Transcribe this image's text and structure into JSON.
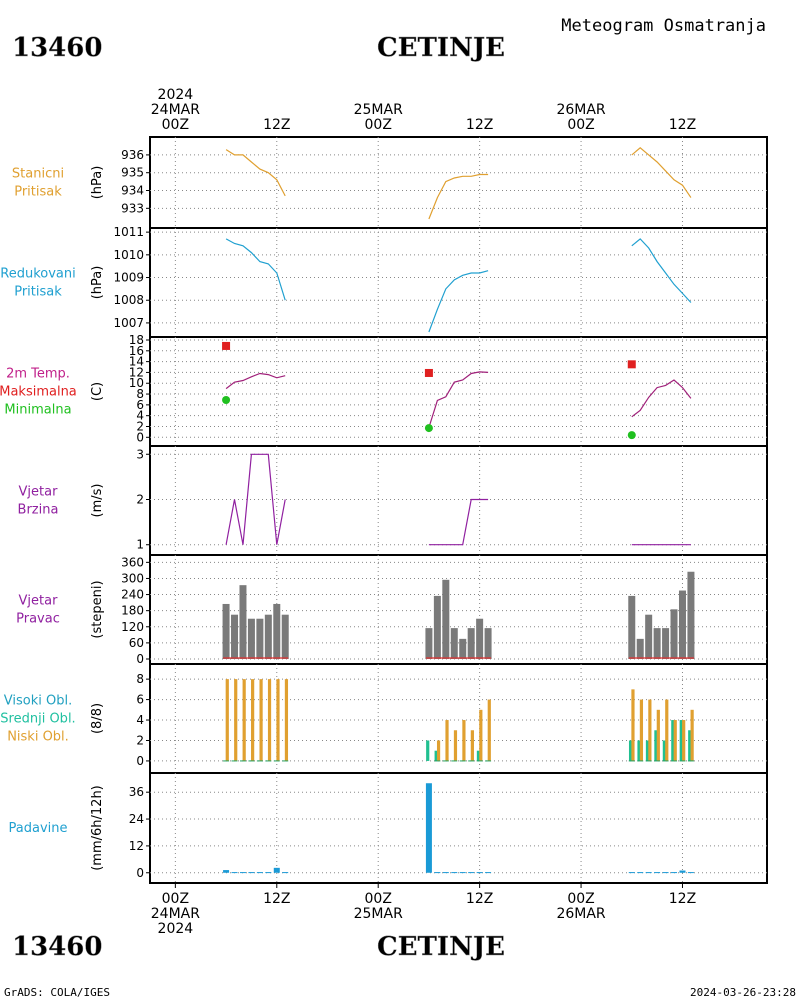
{
  "header": {
    "station_id": "13460",
    "station_name": "CETINJE",
    "subtitle": "Meteogram Osmatranja"
  },
  "footer": {
    "station_id": "13460",
    "station_name": "CETINJE",
    "credit": "GrADS: COLA/IGES",
    "timestamp": "2024-03-26-23:28"
  },
  "time_axis": {
    "top_labels": [
      {
        "hour": 0,
        "lines": [
          "2024",
          "24MAR",
          "00Z"
        ]
      },
      {
        "hour": 12,
        "lines": [
          "12Z"
        ]
      },
      {
        "hour": 24,
        "lines": [
          "25MAR",
          "00Z"
        ]
      },
      {
        "hour": 36,
        "lines": [
          "12Z"
        ]
      },
      {
        "hour": 48,
        "lines": [
          "26MAR",
          "00Z"
        ]
      },
      {
        "hour": 60,
        "lines": [
          "12Z"
        ]
      }
    ],
    "bottom_labels": [
      {
        "hour": 0,
        "lines": [
          "00Z",
          "24MAR",
          "2024"
        ]
      },
      {
        "hour": 12,
        "lines": [
          "12Z"
        ]
      },
      {
        "hour": 24,
        "lines": [
          "00Z",
          "25MAR"
        ]
      },
      {
        "hour": 36,
        "lines": [
          "12Z"
        ]
      },
      {
        "hour": 48,
        "lines": [
          "00Z",
          "26MAR"
        ]
      },
      {
        "hour": 60,
        "lines": [
          "12Z"
        ]
      }
    ],
    "range_hours": [
      -3,
      70
    ],
    "grid_hours": [
      0,
      12,
      24,
      36,
      48,
      60
    ]
  },
  "chart_data": [
    {
      "id": "station_pressure",
      "type": "line",
      "labels": [
        "Stanicni",
        "Pritisak"
      ],
      "label_color": "#e0a030",
      "ylabel": "(hPa)",
      "ylim": [
        932.4,
        936.5
      ],
      "yticks": [
        933,
        934,
        935,
        936
      ],
      "series": [
        {
          "color": "#e0a030",
          "segments": [
            {
              "x": [
                6,
                7,
                8,
                9,
                10,
                11,
                12,
                13
              ],
              "y": [
                936.3,
                936.0,
                936.0,
                935.6,
                935.2,
                935.0,
                934.6,
                933.7
              ]
            },
            {
              "x": [
                30,
                31,
                32,
                33,
                34,
                35,
                36,
                37
              ],
              "y": [
                932.4,
                933.6,
                934.5,
                934.7,
                934.8,
                934.8,
                934.9,
                934.9
              ]
            },
            {
              "x": [
                54,
                55,
                56,
                57,
                58,
                59,
                60,
                61
              ],
              "y": [
                936.0,
                936.4,
                936.0,
                935.6,
                935.1,
                934.6,
                934.3,
                933.6
              ]
            }
          ]
        }
      ]
    },
    {
      "id": "reduced_pressure",
      "type": "line",
      "labels": [
        "Redukovani",
        "Pritisak"
      ],
      "label_color": "#20a0d0",
      "ylabel": "(hPa)",
      "ylim": [
        1006.6,
        1011.05
      ],
      "yticks": [
        1007,
        1008,
        1009,
        1010,
        1011
      ],
      "series": [
        {
          "color": "#20a0d0",
          "segments": [
            {
              "x": [
                6,
                7,
                8,
                9,
                10,
                11,
                12,
                13
              ],
              "y": [
                1010.7,
                1010.5,
                1010.4,
                1010.1,
                1009.7,
                1009.6,
                1009.2,
                1008.0
              ]
            },
            {
              "x": [
                30,
                31,
                32,
                33,
                34,
                35,
                36,
                37
              ],
              "y": [
                1006.6,
                1007.6,
                1008.5,
                1008.9,
                1009.1,
                1009.2,
                1009.2,
                1009.3
              ]
            },
            {
              "x": [
                54,
                55,
                56,
                57,
                58,
                59,
                60,
                61
              ],
              "y": [
                1010.4,
                1010.7,
                1010.3,
                1009.7,
                1009.2,
                1008.7,
                1008.3,
                1007.9
              ]
            }
          ]
        }
      ]
    },
    {
      "id": "temperature",
      "type": "line",
      "labels": [
        "2m Temp.",
        "Maksimalna",
        "Minimalna"
      ],
      "label_colors": [
        "#c0208a",
        "#e02020",
        "#20c020"
      ],
      "ylabel": "(C)",
      "ylim": [
        -0.5,
        18
      ],
      "yticks": [
        0,
        2,
        4,
        6,
        8,
        10,
        12,
        14,
        16,
        18
      ],
      "series": [
        {
          "color": "#a0207a",
          "segments": [
            {
              "x": [
                6,
                7,
                8,
                9,
                10,
                11,
                12,
                13
              ],
              "y": [
                9.0,
                10.2,
                10.5,
                11.2,
                11.8,
                11.6,
                11.0,
                11.4
              ]
            },
            {
              "x": [
                30,
                31,
                32,
                33,
                34,
                35,
                36,
                37
              ],
              "y": [
                1.8,
                6.8,
                7.5,
                10.2,
                10.6,
                11.8,
                12.1,
                12.0
              ]
            },
            {
              "x": [
                54,
                55,
                56,
                57,
                58,
                59,
                60,
                61
              ],
              "y": [
                3.8,
                5.0,
                7.4,
                9.2,
                9.6,
                10.6,
                9.2,
                7.2
              ]
            }
          ]
        }
      ],
      "max_markers": {
        "color": "#e02020",
        "x": [
          6,
          30,
          54
        ],
        "y": [
          16.9,
          11.9,
          13.5
        ]
      },
      "min_markers": {
        "color": "#20c020",
        "x": [
          6,
          30,
          54
        ],
        "y": [
          6.9,
          1.7,
          0.4
        ]
      }
    },
    {
      "id": "wind_speed",
      "type": "line",
      "labels": [
        "Vjetar",
        "Brzina"
      ],
      "label_color": "#9020a0",
      "ylabel": "(m/s)",
      "ylim": [
        0.95,
        3.05
      ],
      "yticks": [
        1,
        2,
        3
      ],
      "series": [
        {
          "color": "#9020a0",
          "segments": [
            {
              "x": [
                6,
                7,
                8,
                9,
                10,
                11,
                12,
                13
              ],
              "y": [
                1,
                2,
                1,
                3,
                3,
                3,
                1,
                2
              ]
            },
            {
              "x": [
                30,
                31,
                32,
                33,
                34,
                35,
                36,
                37
              ],
              "y": [
                1,
                1,
                1,
                1,
                1,
                2,
                2,
                2
              ]
            },
            {
              "x": [
                54,
                55,
                56,
                57,
                58,
                59,
                60,
                61
              ],
              "y": [
                1,
                1,
                1,
                1,
                1,
                1,
                1,
                1
              ]
            }
          ]
        }
      ]
    },
    {
      "id": "wind_direction",
      "type": "bar",
      "labels": [
        "Vjetar",
        "Pravac"
      ],
      "label_color": "#9020a0",
      "ylabel": "(stepeni)",
      "ylim": [
        0,
        365
      ],
      "yticks": [
        0,
        60,
        120,
        180,
        240,
        300,
        360
      ],
      "bar_color": "#7a7a7a",
      "x": [
        6,
        7,
        8,
        9,
        10,
        11,
        12,
        13,
        30,
        31,
        32,
        33,
        34,
        35,
        36,
        37,
        54,
        55,
        56,
        57,
        58,
        59,
        60,
        61
      ],
      "values": [
        205,
        165,
        275,
        150,
        150,
        165,
        205,
        165,
        115,
        235,
        295,
        115,
        75,
        115,
        150,
        115,
        235,
        75,
        165,
        115,
        115,
        185,
        255,
        325
      ],
      "baseline_color": "#e03030"
    },
    {
      "id": "clouds",
      "type": "bar",
      "labels": [
        "Visoki Obl.",
        "Srednji Obl.",
        "Niski Obl."
      ],
      "label_colors": [
        "#20a0c0",
        "#20c0a0",
        "#e0a030"
      ],
      "ylabel": "(8/8)",
      "ylim": [
        -0.3,
        8.6
      ],
      "yticks": [
        0,
        2,
        4,
        6,
        8
      ],
      "series": [
        {
          "name": "Visoki Obl.",
          "color": "#20a0c0",
          "x": [],
          "values": []
        },
        {
          "name": "Srednji Obl.",
          "color": "#20c090",
          "x": [
            30,
            31,
            36,
            54,
            55,
            56,
            57,
            58,
            59,
            60,
            61
          ],
          "values": [
            2,
            1,
            1,
            2,
            2,
            2,
            3,
            2,
            4,
            4,
            3
          ]
        },
        {
          "name": "Niski Obl.",
          "color": "#e0a030",
          "x": [
            6,
            7,
            8,
            9,
            10,
            11,
            12,
            13,
            31,
            32,
            33,
            34,
            35,
            36,
            37,
            54,
            55,
            56,
            57,
            58,
            59,
            60,
            61
          ],
          "values": [
            8,
            8,
            8,
            8,
            8,
            8,
            8,
            8,
            2,
            4,
            3,
            4,
            3,
            5,
            6,
            7,
            6,
            6,
            5,
            6,
            4,
            4,
            5
          ]
        }
      ]
    },
    {
      "id": "precipitation",
      "type": "bar",
      "labels": [
        "Padavine"
      ],
      "label_color": "#20a0d0",
      "ylabel": "(mm/6h/12h)",
      "ylim": [
        -1,
        41
      ],
      "yticks": [
        0,
        12,
        24,
        36
      ],
      "bar_color": "#1a9ad6",
      "x": [
        6,
        7,
        8,
        9,
        10,
        11,
        12,
        13,
        30,
        31,
        32,
        33,
        34,
        35,
        36,
        37,
        54,
        55,
        56,
        57,
        58,
        59,
        60,
        61
      ],
      "values": [
        1.2,
        0.3,
        0.3,
        0.3,
        0.3,
        0.3,
        2.2,
        0.3,
        40.0,
        0.3,
        0.3,
        0.3,
        0.3,
        0.3,
        0.3,
        0.3,
        0.3,
        0.3,
        0.3,
        0.3,
        0.3,
        0.3,
        1.0,
        0.3
      ]
    }
  ]
}
